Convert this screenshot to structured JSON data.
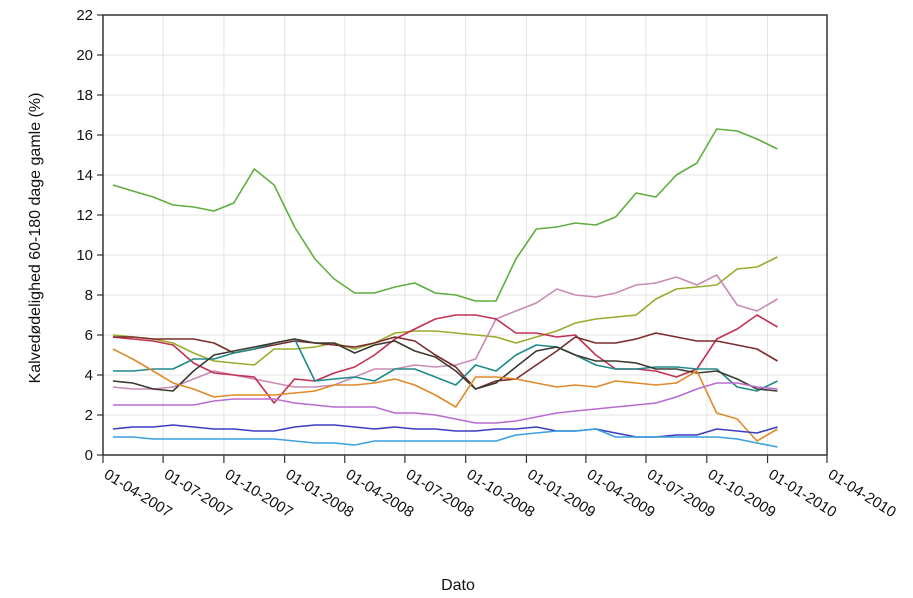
{
  "chart_data": {
    "type": "line",
    "xlabel": "Dato",
    "ylabel": "Kalvedødelighed 60-180 dage gamle (%)",
    "ylim": [
      0,
      22
    ],
    "xlim": [
      "2007-04-01",
      "2010-04-01"
    ],
    "yticks": [
      0,
      2,
      4,
      6,
      8,
      10,
      12,
      14,
      16,
      18,
      20,
      22
    ],
    "xtick_labels": [
      "01-04-2007",
      "01-07-2007",
      "01-10-2007",
      "01-01-2008",
      "01-04-2008",
      "01-07-2008",
      "01-10-2008",
      "01-01-2009",
      "01-04-2009",
      "01-07-2009",
      "01-10-2009",
      "01-01-2010",
      "01-04-2010"
    ],
    "grid": true,
    "x": [
      "2007-04",
      "2007-05",
      "2007-06",
      "2007-07",
      "2007-08",
      "2007-09",
      "2007-10",
      "2007-11",
      "2007-12",
      "2008-01",
      "2008-02",
      "2008-03",
      "2008-04",
      "2008-05",
      "2008-06",
      "2008-07",
      "2008-08",
      "2008-09",
      "2008-10",
      "2008-11",
      "2008-12",
      "2009-01",
      "2009-02",
      "2009-03",
      "2009-04",
      "2009-05",
      "2009-06",
      "2009-07",
      "2009-08",
      "2009-09",
      "2009-10",
      "2009-11",
      "2009-12",
      "2010-01"
    ],
    "series": [
      {
        "color": "#5fae3f",
        "values": [
          13.5,
          13.2,
          12.9,
          12.5,
          12.4,
          12.2,
          12.6,
          14.3,
          13.5,
          11.4,
          9.8,
          8.8,
          8.1,
          8.1,
          8.4,
          8.6,
          8.1,
          8.0,
          7.7,
          7.7,
          9.8,
          11.3,
          11.4,
          11.6,
          11.5,
          11.9,
          13.1,
          12.9,
          14.0,
          14.6,
          16.3,
          16.2,
          15.8,
          15.3
        ]
      },
      {
        "color": "#9aab2e",
        "values": [
          6.0,
          5.9,
          5.8,
          5.6,
          5.1,
          4.7,
          4.6,
          4.5,
          5.3,
          5.3,
          5.4,
          5.6,
          5.3,
          5.6,
          6.1,
          6.2,
          6.2,
          6.1,
          6.0,
          5.9,
          5.6,
          5.9,
          6.2,
          6.6,
          6.8,
          6.9,
          7.0,
          7.8,
          8.3,
          8.4,
          8.5,
          9.3,
          9.4,
          9.9
        ]
      },
      {
        "color": "#c98bb4",
        "values": [
          3.4,
          3.3,
          3.3,
          3.4,
          3.8,
          4.2,
          4.0,
          3.8,
          3.6,
          3.4,
          3.4,
          3.5,
          3.9,
          4.3,
          4.3,
          4.5,
          4.4,
          4.5,
          4.8,
          6.8,
          7.2,
          7.6,
          8.3,
          8.0,
          7.9,
          8.1,
          8.5,
          8.6,
          8.9,
          8.5,
          9.0,
          7.5,
          7.2,
          7.8
        ]
      },
      {
        "color": "#c23153",
        "values": [
          5.9,
          5.8,
          5.7,
          5.5,
          4.6,
          4.1,
          4.0,
          3.9,
          2.6,
          3.8,
          3.7,
          4.1,
          4.4,
          5.0,
          5.8,
          6.3,
          6.8,
          7.0,
          7.0,
          6.8,
          6.1,
          6.1,
          5.9,
          6.0,
          5.0,
          4.3,
          4.3,
          4.2,
          3.9,
          4.3,
          5.8,
          6.3,
          7.0,
          6.4
        ]
      },
      {
        "color": "#7a2b2b",
        "values": [
          5.9,
          5.9,
          5.8,
          5.8,
          5.8,
          5.6,
          5.1,
          5.3,
          5.5,
          5.7,
          5.6,
          5.5,
          5.4,
          5.6,
          5.9,
          5.7,
          5.0,
          4.4,
          3.3,
          3.7,
          3.8,
          4.5,
          5.2,
          5.9,
          5.6,
          5.6,
          5.8,
          6.1,
          5.9,
          5.7,
          5.7,
          5.5,
          5.3,
          4.7
        ]
      },
      {
        "color": "#1f8a8a",
        "values": [
          4.2,
          4.2,
          4.3,
          4.3,
          4.8,
          4.8,
          5.1,
          5.3,
          5.6,
          5.8,
          3.7,
          3.8,
          3.9,
          3.7,
          4.3,
          4.3,
          3.9,
          3.5,
          4.5,
          4.2,
          5.0,
          5.5,
          5.4,
          5.0,
          4.5,
          4.3,
          4.3,
          4.4,
          4.4,
          4.3,
          4.3,
          3.4,
          3.2,
          3.7
        ]
      },
      {
        "color": "#3b3a30",
        "values": [
          3.7,
          3.6,
          3.3,
          3.2,
          4.2,
          5.0,
          5.2,
          5.4,
          5.6,
          5.8,
          5.6,
          5.6,
          5.1,
          5.5,
          5.7,
          5.2,
          4.9,
          4.2,
          3.3,
          3.6,
          4.4,
          5.2,
          5.4,
          5.0,
          4.7,
          4.7,
          4.6,
          4.3,
          4.3,
          4.1,
          4.2,
          3.8,
          3.3,
          3.2
        ]
      },
      {
        "color": "#e08a2a",
        "values": [
          5.3,
          4.8,
          4.2,
          3.6,
          3.3,
          2.9,
          3.0,
          3.0,
          3.0,
          3.1,
          3.2,
          3.5,
          3.5,
          3.6,
          3.8,
          3.5,
          3.0,
          2.4,
          3.9,
          3.9,
          3.8,
          3.6,
          3.4,
          3.5,
          3.4,
          3.7,
          3.6,
          3.5,
          3.6,
          4.2,
          2.1,
          1.8,
          0.7,
          1.3
        ]
      },
      {
        "color": "#b96ccf",
        "values": [
          2.5,
          2.5,
          2.5,
          2.5,
          2.5,
          2.7,
          2.8,
          2.8,
          2.8,
          2.6,
          2.5,
          2.4,
          2.4,
          2.4,
          2.1,
          2.1,
          2.0,
          1.8,
          1.6,
          1.6,
          1.7,
          1.9,
          2.1,
          2.2,
          2.3,
          2.4,
          2.5,
          2.6,
          2.9,
          3.3,
          3.6,
          3.6,
          3.4,
          3.3
        ]
      },
      {
        "color": "#3a3fc0",
        "values": [
          1.3,
          1.4,
          1.4,
          1.5,
          1.4,
          1.3,
          1.3,
          1.2,
          1.2,
          1.4,
          1.5,
          1.5,
          1.4,
          1.3,
          1.4,
          1.3,
          1.3,
          1.2,
          1.2,
          1.3,
          1.3,
          1.4,
          1.2,
          1.2,
          1.3,
          1.1,
          0.9,
          0.9,
          1.0,
          1.0,
          1.3,
          1.2,
          1.1,
          1.4
        ]
      },
      {
        "color": "#3aa0e0",
        "values": [
          0.9,
          0.9,
          0.8,
          0.8,
          0.8,
          0.8,
          0.8,
          0.8,
          0.8,
          0.7,
          0.6,
          0.6,
          0.5,
          0.7,
          0.7,
          0.7,
          0.7,
          0.7,
          0.7,
          0.7,
          1.0,
          1.1,
          1.2,
          1.2,
          1.3,
          0.9,
          0.9,
          0.9,
          0.9,
          0.9,
          0.9,
          0.8,
          0.6,
          0.4
        ]
      }
    ]
  }
}
